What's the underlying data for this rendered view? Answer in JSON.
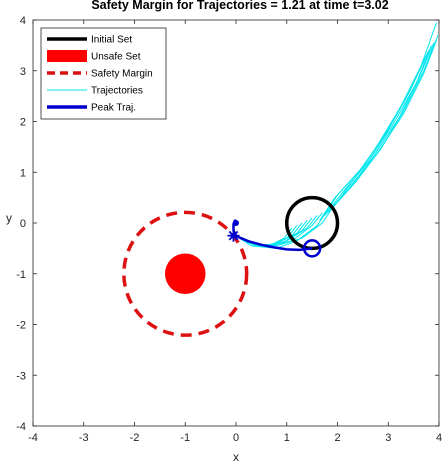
{
  "chart_data": {
    "type": "line",
    "title": "Safety Margin for Trajectories = 1.21 at time t=3.02",
    "xlabel": "x",
    "ylabel": "y",
    "xlim": [
      -4,
      4
    ],
    "ylim": [
      -4,
      4
    ],
    "xticks": [
      -4,
      -3,
      -2,
      -1,
      0,
      1,
      2,
      3,
      4
    ],
    "yticks": [
      -4,
      -3,
      -2,
      -1,
      0,
      1,
      2,
      3,
      4
    ],
    "grid": false,
    "legend_position": "top-left",
    "legend": [
      {
        "label": "Initial Set",
        "style": "line",
        "color": "#000000"
      },
      {
        "label": "Unsafe Set",
        "style": "fill",
        "color": "#ff0000"
      },
      {
        "label": "Safety Margin",
        "style": "dashed",
        "color": "#dd1111"
      },
      {
        "label": "Trajectories",
        "style": "thin",
        "color": "#00e5ee"
      },
      {
        "label": "Peak Traj.",
        "style": "line",
        "color": "#0000cc"
      }
    ],
    "initial_set": {
      "center": [
        1.5,
        0.0
      ],
      "radius": 0.5,
      "color": "#000000"
    },
    "unsafe_set": {
      "center": [
        -1.0,
        -1.0
      ],
      "radius": 0.4,
      "color": "#ff0000"
    },
    "safety_margin": {
      "center": [
        -1.0,
        -1.0
      ],
      "radius": 1.21,
      "color": "#dd1111"
    },
    "trajectories": {
      "color": "#00e5ee",
      "series": [
        {
          "x": [
            1.95,
            2.35,
            2.8,
            3.25,
            3.65,
            3.95
          ],
          "y": [
            0.35,
            0.9,
            1.55,
            2.3,
            3.1,
            3.95
          ]
        },
        {
          "x": [
            1.9,
            2.35,
            2.85,
            3.3,
            3.7,
            3.98
          ],
          "y": [
            0.3,
            0.8,
            1.45,
            2.2,
            3.0,
            3.7
          ]
        },
        {
          "x": [
            1.85,
            2.3,
            2.8,
            3.3,
            3.7,
            3.95
          ],
          "y": [
            0.25,
            0.75,
            1.4,
            2.15,
            2.95,
            3.6
          ]
        },
        {
          "x": [
            1.8,
            2.2,
            2.7,
            3.2,
            3.6,
            3.9
          ],
          "y": [
            0.2,
            0.65,
            1.3,
            2.05,
            2.85,
            3.55
          ]
        },
        {
          "x": [
            1.75,
            2.1,
            2.6,
            3.1,
            3.55,
            3.85
          ],
          "y": [
            0.15,
            0.6,
            1.2,
            1.95,
            2.75,
            3.5
          ]
        },
        {
          "x": [
            1.7,
            2.0,
            2.5,
            3.0,
            3.45,
            3.8
          ],
          "y": [
            0.1,
            0.55,
            1.1,
            1.85,
            2.65,
            3.4
          ]
        },
        {
          "x": [
            1.65,
            1.95,
            2.45,
            2.95,
            3.4,
            3.75
          ],
          "y": [
            0.05,
            0.5,
            1.05,
            1.75,
            2.55,
            3.3
          ]
        },
        {
          "x": [
            1.9,
            1.7,
            1.3,
            0.8,
            0.3,
            0.0
          ],
          "y": [
            0.3,
            0.0,
            -0.3,
            -0.45,
            -0.4,
            -0.25
          ]
        },
        {
          "x": [
            1.8,
            1.6,
            1.2,
            0.8,
            0.3,
            0.0
          ],
          "y": [
            0.25,
            -0.05,
            -0.35,
            -0.5,
            -0.45,
            -0.25
          ]
        },
        {
          "x": [
            1.7,
            1.5,
            1.1,
            0.7,
            0.3,
            0.0
          ],
          "y": [
            0.2,
            -0.05,
            -0.35,
            -0.45,
            -0.4,
            -0.25
          ]
        },
        {
          "x": [
            1.6,
            1.4,
            1.0,
            0.6,
            0.2,
            0.0
          ],
          "y": [
            0.15,
            -0.1,
            -0.35,
            -0.45,
            -0.38,
            -0.25
          ]
        },
        {
          "x": [
            1.5,
            1.3,
            0.9,
            0.5,
            0.2,
            0.0
          ],
          "y": [
            0.1,
            -0.15,
            -0.4,
            -0.45,
            -0.35,
            -0.25
          ]
        },
        {
          "x": [
            1.4,
            1.2,
            0.8,
            0.5,
            0.2,
            0.0
          ],
          "y": [
            0.05,
            -0.2,
            -0.4,
            -0.45,
            -0.35,
            -0.25
          ]
        },
        {
          "x": [
            1.3,
            1.1,
            0.75,
            0.45,
            0.2,
            0.0
          ],
          "y": [
            0.0,
            -0.25,
            -0.42,
            -0.45,
            -0.35,
            -0.25
          ]
        },
        {
          "x": [
            1.2,
            1.0,
            0.7,
            0.4,
            0.15,
            0.0
          ],
          "y": [
            -0.05,
            -0.3,
            -0.45,
            -0.45,
            -0.35,
            -0.25
          ]
        },
        {
          "x": [
            1.1,
            0.95,
            0.65,
            0.4,
            0.15,
            0.0
          ],
          "y": [
            -0.1,
            -0.3,
            -0.45,
            -0.45,
            -0.35,
            -0.25
          ]
        }
      ]
    },
    "peak_trajectory": {
      "color": "#0000cc",
      "x": [
        1.5,
        1.25,
        1.0,
        0.75,
        0.5,
        0.25,
        0.1,
        0.0,
        -0.05,
        -0.05,
        -0.02,
        0.0
      ],
      "y": [
        -0.5,
        -0.53,
        -0.52,
        -0.48,
        -0.43,
        -0.36,
        -0.3,
        -0.25,
        -0.15,
        -0.02,
        0.05,
        0.0
      ],
      "start_marker": {
        "x": 1.5,
        "y": -0.5,
        "shape": "circle"
      },
      "peak_marker": {
        "x": -0.05,
        "y": -0.25,
        "shape": "asterisk"
      },
      "end_marker": {
        "x": 0.0,
        "y": 0.0,
        "shape": "dot"
      }
    }
  }
}
